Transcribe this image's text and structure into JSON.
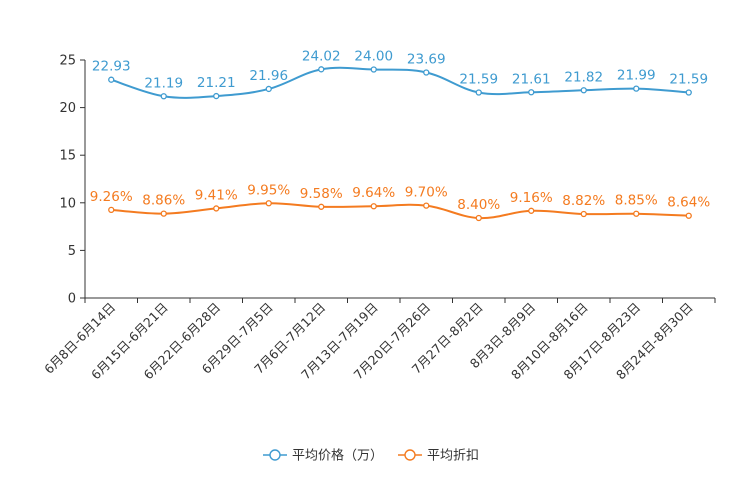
{
  "chart_data": {
    "type": "line",
    "categories": [
      "6月8日-6月14日",
      "6月15日-6月21日",
      "6月22日-6月28日",
      "6月29日-7月5日",
      "7月6日-7月12日",
      "7月13日-7月19日",
      "7月20日-7月26日",
      "7月27日-8月2日",
      "8月3日-8月9日",
      "8月10日-8月16日",
      "8月17日-8月23日",
      "8月24日-8月30日"
    ],
    "series": [
      {
        "name": "平均价格（万）",
        "color": "#3f9bd0",
        "values": [
          22.93,
          21.19,
          21.21,
          21.96,
          24.02,
          24.0,
          23.69,
          21.59,
          21.61,
          21.82,
          21.99,
          21.59
        ],
        "labels": [
          "22.93",
          "21.19",
          "21.21",
          "21.96",
          "24.02",
          "24.00",
          "23.69",
          "21.59",
          "21.61",
          "21.82",
          "21.99",
          "21.59"
        ]
      },
      {
        "name": "平均折扣",
        "color": "#f47b20",
        "values": [
          9.26,
          8.86,
          9.41,
          9.95,
          9.58,
          9.64,
          9.7,
          8.4,
          9.16,
          8.82,
          8.85,
          8.64
        ],
        "labels": [
          "9.26%",
          "8.86%",
          "9.41%",
          "9.95%",
          "9.58%",
          "9.64%",
          "9.70%",
          "8.40%",
          "9.16%",
          "8.82%",
          "8.85%",
          "8.64%"
        ]
      }
    ],
    "yticks": [
      "0",
      "5",
      "10",
      "15",
      "20",
      "25"
    ],
    "ylim": [
      0,
      25
    ],
    "title": "",
    "xlabel": "",
    "ylabel": "",
    "legend": "bottom-center",
    "grid": false
  }
}
